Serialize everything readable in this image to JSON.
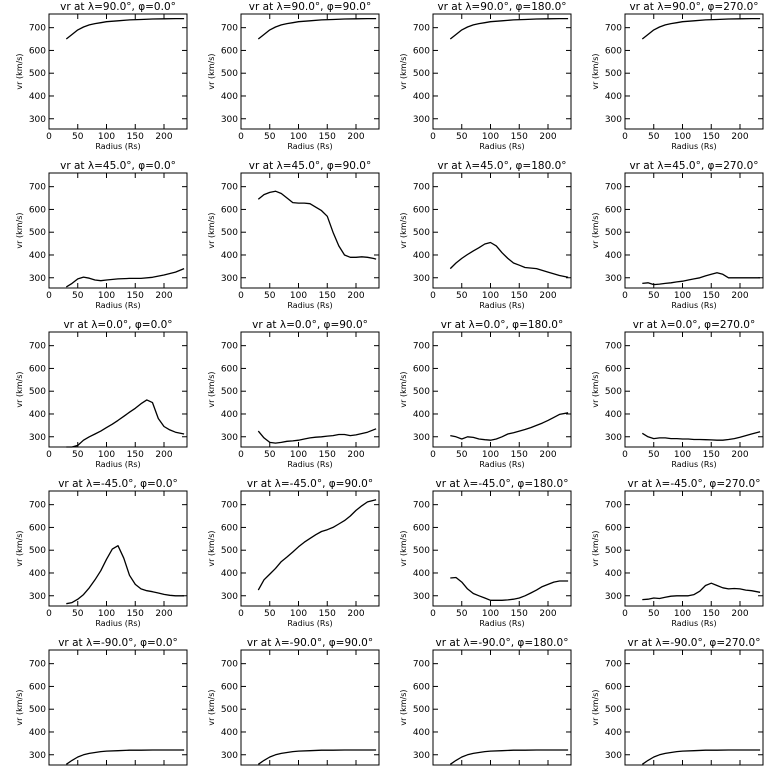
{
  "chart_data": {
    "type": "line",
    "layout": "grid 5 rows x 4 columns",
    "xlabel": "Radius (Rs)",
    "ylabel": "vr (km/s)",
    "xlim": [
      0,
      240
    ],
    "ylim": [
      255,
      760
    ],
    "xticks": [
      0,
      50,
      100,
      150,
      200
    ],
    "yticks": [
      300,
      400,
      500,
      600,
      700
    ],
    "grid": false,
    "legend": "none",
    "panels": [
      {
        "title": "vr at λ=90.0°, φ=0.0°",
        "x": [
          30,
          40,
          50,
          60,
          70,
          80,
          90,
          100,
          120,
          140,
          160,
          180,
          200,
          220,
          235
        ],
        "y": [
          650,
          670,
          690,
          703,
          712,
          718,
          722,
          726,
          730,
          734,
          736,
          738,
          739,
          740,
          740
        ]
      },
      {
        "title": "vr at λ=90.0°, φ=90.0°",
        "x": [
          30,
          40,
          50,
          60,
          70,
          80,
          90,
          100,
          120,
          140,
          160,
          180,
          200,
          220,
          235
        ],
        "y": [
          650,
          670,
          690,
          703,
          712,
          718,
          722,
          726,
          730,
          734,
          736,
          738,
          739,
          740,
          740
        ]
      },
      {
        "title": "vr at λ=90.0°, φ=180.0°",
        "x": [
          30,
          40,
          50,
          60,
          70,
          80,
          90,
          100,
          120,
          140,
          160,
          180,
          200,
          220,
          235
        ],
        "y": [
          650,
          670,
          690,
          703,
          712,
          718,
          722,
          726,
          730,
          734,
          736,
          738,
          739,
          740,
          740
        ]
      },
      {
        "title": "vr at λ=90.0°, φ=270.0°",
        "x": [
          30,
          40,
          50,
          60,
          70,
          80,
          90,
          100,
          120,
          140,
          160,
          180,
          200,
          220,
          235
        ],
        "y": [
          650,
          670,
          690,
          703,
          712,
          718,
          722,
          726,
          730,
          734,
          736,
          738,
          739,
          740,
          740
        ]
      },
      {
        "title": "vr at λ=45.0°, φ=0.0°",
        "x": [
          30,
          40,
          50,
          60,
          70,
          80,
          90,
          100,
          120,
          140,
          160,
          180,
          200,
          220,
          235
        ],
        "y": [
          260,
          275,
          295,
          303,
          298,
          290,
          287,
          290,
          295,
          297,
          297,
          302,
          312,
          325,
          340
        ]
      },
      {
        "title": "vr at λ=45.0°, φ=90.0°",
        "x": [
          30,
          40,
          50,
          60,
          70,
          80,
          90,
          100,
          110,
          120,
          130,
          140,
          150,
          160,
          170,
          180,
          190,
          200,
          210,
          220,
          230,
          235
        ],
        "y": [
          645,
          665,
          675,
          680,
          670,
          650,
          630,
          628,
          628,
          625,
          610,
          595,
          570,
          500,
          440,
          400,
          390,
          390,
          392,
          390,
          385,
          382
        ]
      },
      {
        "title": "vr at λ=45.0°, φ=180.0°",
        "x": [
          30,
          40,
          50,
          60,
          70,
          80,
          90,
          100,
          110,
          120,
          130,
          140,
          150,
          160,
          180,
          200,
          220,
          235
        ],
        "y": [
          340,
          365,
          385,
          402,
          418,
          432,
          448,
          455,
          440,
          410,
          385,
          365,
          355,
          345,
          340,
          325,
          310,
          302
        ]
      },
      {
        "title": "vr at λ=45.0°, φ=270.0°",
        "x": [
          30,
          40,
          50,
          60,
          70,
          80,
          90,
          100,
          110,
          120,
          130,
          140,
          150,
          160,
          170,
          180,
          200,
          220,
          235
        ],
        "y": [
          275,
          278,
          270,
          272,
          275,
          278,
          282,
          285,
          290,
          295,
          300,
          308,
          315,
          322,
          315,
          300,
          300,
          300,
          300
        ]
      },
      {
        "title": "vr at λ=0.0°, φ=0.0°",
        "x": [
          30,
          40,
          50,
          60,
          70,
          80,
          90,
          100,
          110,
          120,
          130,
          140,
          150,
          160,
          170,
          180,
          190,
          200,
          210,
          220,
          235
        ],
        "y": [
          255,
          255,
          262,
          285,
          300,
          312,
          325,
          340,
          355,
          372,
          390,
          408,
          425,
          445,
          462,
          450,
          380,
          345,
          330,
          320,
          312
        ]
      },
      {
        "title": "vr at λ=0.0°, φ=90.0°",
        "x": [
          30,
          40,
          50,
          60,
          70,
          80,
          90,
          100,
          110,
          120,
          130,
          140,
          150,
          160,
          170,
          180,
          190,
          200,
          220,
          235
        ],
        "y": [
          325,
          295,
          275,
          272,
          275,
          280,
          282,
          285,
          290,
          295,
          298,
          300,
          303,
          305,
          310,
          310,
          305,
          308,
          320,
          335
        ]
      },
      {
        "title": "vr at λ=0.0°, φ=180.0°",
        "x": [
          30,
          40,
          50,
          60,
          70,
          80,
          90,
          100,
          110,
          120,
          130,
          140,
          150,
          160,
          170,
          180,
          190,
          200,
          210,
          220,
          235
        ],
        "y": [
          305,
          300,
          290,
          300,
          297,
          290,
          287,
          285,
          290,
          300,
          312,
          318,
          325,
          332,
          340,
          350,
          360,
          372,
          385,
          398,
          405
        ]
      },
      {
        "title": "vr at λ=0.0°, φ=270.0°",
        "x": [
          30,
          40,
          50,
          60,
          70,
          80,
          90,
          100,
          110,
          120,
          130,
          140,
          150,
          160,
          170,
          180,
          190,
          200,
          210,
          220,
          235
        ],
        "y": [
          315,
          300,
          292,
          295,
          295,
          292,
          292,
          290,
          290,
          288,
          288,
          287,
          286,
          285,
          285,
          288,
          292,
          298,
          305,
          312,
          322
        ]
      },
      {
        "title": "vr at λ=-45.0°, φ=0.0°",
        "x": [
          30,
          40,
          50,
          60,
          70,
          80,
          90,
          100,
          110,
          120,
          130,
          140,
          150,
          160,
          170,
          180,
          190,
          200,
          210,
          220,
          235
        ],
        "y": [
          265,
          270,
          285,
          305,
          335,
          370,
          410,
          460,
          505,
          520,
          465,
          390,
          350,
          330,
          322,
          318,
          312,
          306,
          302,
          300,
          300
        ]
      },
      {
        "title": "vr at λ=-45.0°, φ=90.0°",
        "x": [
          30,
          40,
          50,
          60,
          70,
          80,
          90,
          100,
          110,
          120,
          130,
          140,
          150,
          160,
          170,
          180,
          190,
          200,
          210,
          220,
          235
        ],
        "y": [
          325,
          370,
          395,
          420,
          450,
          470,
          492,
          515,
          535,
          552,
          568,
          582,
          590,
          600,
          615,
          630,
          650,
          675,
          695,
          712,
          722
        ]
      },
      {
        "title": "vr at λ=-45.0°, φ=180.0°",
        "x": [
          30,
          40,
          50,
          60,
          70,
          80,
          90,
          100,
          110,
          120,
          130,
          140,
          150,
          160,
          170,
          180,
          190,
          200,
          210,
          220,
          235
        ],
        "y": [
          378,
          380,
          360,
          330,
          310,
          300,
          290,
          280,
          280,
          280,
          282,
          285,
          290,
          300,
          312,
          325,
          340,
          350,
          360,
          365,
          365
        ]
      },
      {
        "title": "vr at λ=-45.0°, φ=270.0°",
        "x": [
          30,
          40,
          50,
          60,
          70,
          80,
          90,
          100,
          110,
          120,
          130,
          140,
          150,
          160,
          170,
          180,
          190,
          200,
          210,
          220,
          235
        ],
        "y": [
          283,
          285,
          290,
          288,
          293,
          298,
          300,
          300,
          300,
          305,
          320,
          345,
          355,
          345,
          335,
          330,
          332,
          330,
          325,
          322,
          315
        ]
      },
      {
        "title": "vr at λ=-90.0°, φ=0.0°",
        "x": [
          30,
          40,
          50,
          60,
          70,
          80,
          90,
          100,
          120,
          140,
          160,
          180,
          200,
          220,
          235
        ],
        "y": [
          258,
          275,
          290,
          300,
          306,
          310,
          314,
          316,
          318,
          320,
          320,
          321,
          321,
          321,
          321
        ]
      },
      {
        "title": "vr at λ=-90.0°, φ=90.0°",
        "x": [
          30,
          40,
          50,
          60,
          70,
          80,
          90,
          100,
          120,
          140,
          160,
          180,
          200,
          220,
          235
        ],
        "y": [
          258,
          275,
          290,
          300,
          306,
          310,
          314,
          316,
          318,
          320,
          320,
          321,
          321,
          321,
          321
        ]
      },
      {
        "title": "vr at λ=-90.0°, φ=180.0°",
        "x": [
          30,
          40,
          50,
          60,
          70,
          80,
          90,
          100,
          120,
          140,
          160,
          180,
          200,
          220,
          235
        ],
        "y": [
          258,
          275,
          290,
          300,
          306,
          310,
          314,
          316,
          318,
          320,
          320,
          321,
          321,
          321,
          321
        ]
      },
      {
        "title": "vr at λ=-90.0°, φ=270.0°",
        "x": [
          30,
          40,
          50,
          60,
          70,
          80,
          90,
          100,
          120,
          140,
          160,
          180,
          200,
          220,
          235
        ],
        "y": [
          258,
          275,
          290,
          300,
          306,
          310,
          314,
          316,
          318,
          320,
          320,
          321,
          321,
          321,
          321
        ]
      }
    ]
  }
}
